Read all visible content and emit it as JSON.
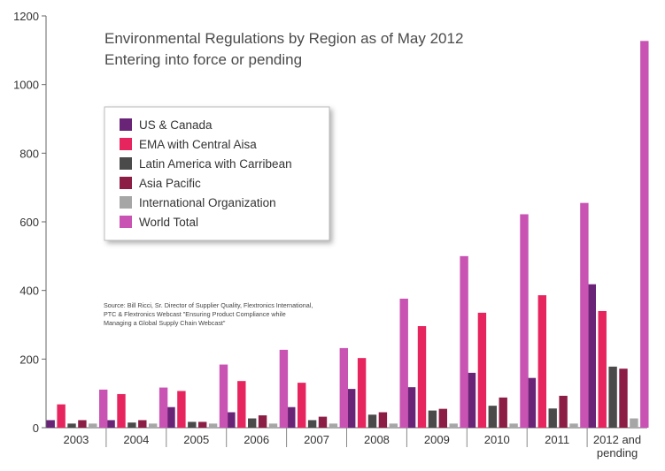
{
  "chart_data": {
    "type": "bar",
    "title": "Environmental Regulations by Region as of May 2012",
    "subtitle": "Entering into force or pending",
    "categories": [
      "2003",
      "2004",
      "2005",
      "2006",
      "2007",
      "2008",
      "2009",
      "2010",
      "2011",
      "2012 and pending"
    ],
    "category_lines": [
      [
        "2003"
      ],
      [
        "2004"
      ],
      [
        "2005"
      ],
      [
        "2006"
      ],
      [
        "2007"
      ],
      [
        "2008"
      ],
      [
        "2009"
      ],
      [
        "2010"
      ],
      [
        "2011"
      ],
      [
        "2012 and",
        "pending"
      ]
    ],
    "ylim": [
      0,
      1200
    ],
    "yticks": [
      0,
      200,
      400,
      600,
      800,
      1000,
      1200
    ],
    "grid": false,
    "legend_position": "top-left",
    "series": [
      {
        "name": "US & Canada",
        "color": "#6a2477",
        "values": [
          22,
          22,
          60,
          45,
          60,
          113,
          118,
          160,
          145,
          418
        ]
      },
      {
        "name": "EMA with Central Aisa",
        "color": "#e6245e",
        "values": [
          68,
          98,
          107,
          136,
          131,
          203,
          296,
          335,
          386,
          340
        ]
      },
      {
        "name": "Latin America with Carribean",
        "color": "#4a4a4a",
        "values": [
          12,
          15,
          17,
          27,
          22,
          38,
          50,
          64,
          56,
          178
        ]
      },
      {
        "name": "Asia Pacific",
        "color": "#8c1d44",
        "values": [
          22,
          22,
          17,
          36,
          32,
          45,
          55,
          88,
          93,
          172
        ]
      },
      {
        "name": "International Organization",
        "color": "#a6a6a6",
        "values": [
          12,
          12,
          12,
          12,
          12,
          12,
          12,
          12,
          12,
          27
        ]
      },
      {
        "name": "World Total",
        "color": "#c853b3",
        "values": [
          111,
          117,
          184,
          227,
          232,
          376,
          500,
          622,
          655,
          1127
        ]
      }
    ],
    "source_note": [
      "Source: Bill Ricci, Sr. Director of Supplier Quality, Flextronics International,",
      "PTC & Flextronics Webcast \"Ensuring Product Compliance while",
      "Managing a Global Supply Chain Webcast\""
    ]
  }
}
